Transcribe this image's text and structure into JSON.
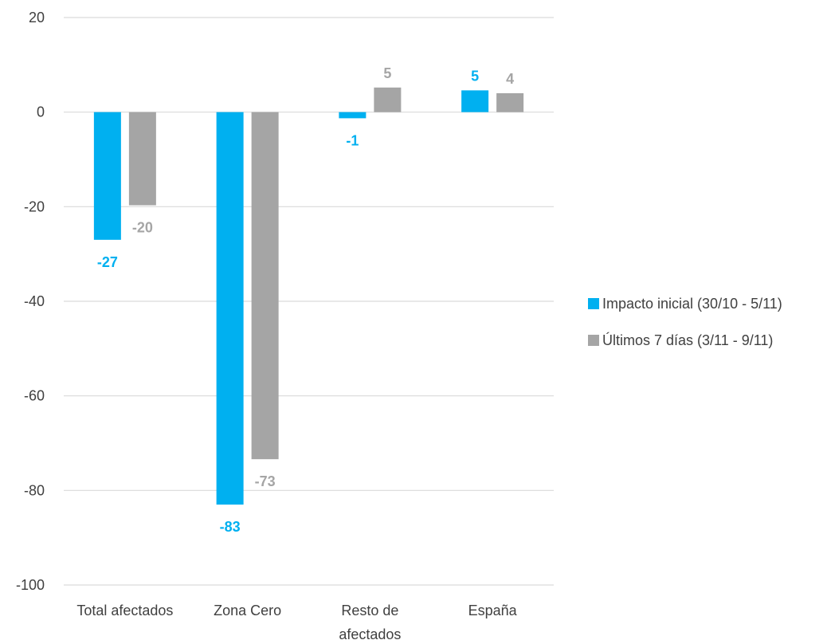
{
  "chart_data": {
    "type": "bar",
    "title": "",
    "xlabel": "",
    "ylabel": "",
    "categories": [
      "Total afectados",
      "Zona Cero",
      "Resto de afectados",
      "España"
    ],
    "category_lines": [
      [
        "Total afectados"
      ],
      [
        "Zona Cero"
      ],
      [
        "Resto de",
        "afectados"
      ],
      [
        "España"
      ]
    ],
    "series": [
      {
        "name": "Impacto inicial (30/10 - 5/11)",
        "values": [
          -27,
          -83,
          -1.3,
          4.6
        ],
        "labels": [
          "-27",
          "-83",
          "-1",
          "5"
        ],
        "color": "#00b0f0"
      },
      {
        "name": "Últimos 7 días (3/11 - 9/11)",
        "values": [
          -19.7,
          -73.4,
          5.2,
          4
        ],
        "labels": [
          "-20",
          "-73",
          "5",
          "4"
        ],
        "color": "#a5a5a5"
      }
    ],
    "ylim": [
      -100,
      20
    ],
    "yticks": [
      20,
      0,
      -20,
      -40,
      -60,
      -80,
      -100
    ],
    "grid": true,
    "gridline_color": "#d9d9d9",
    "legend_position": "right"
  }
}
